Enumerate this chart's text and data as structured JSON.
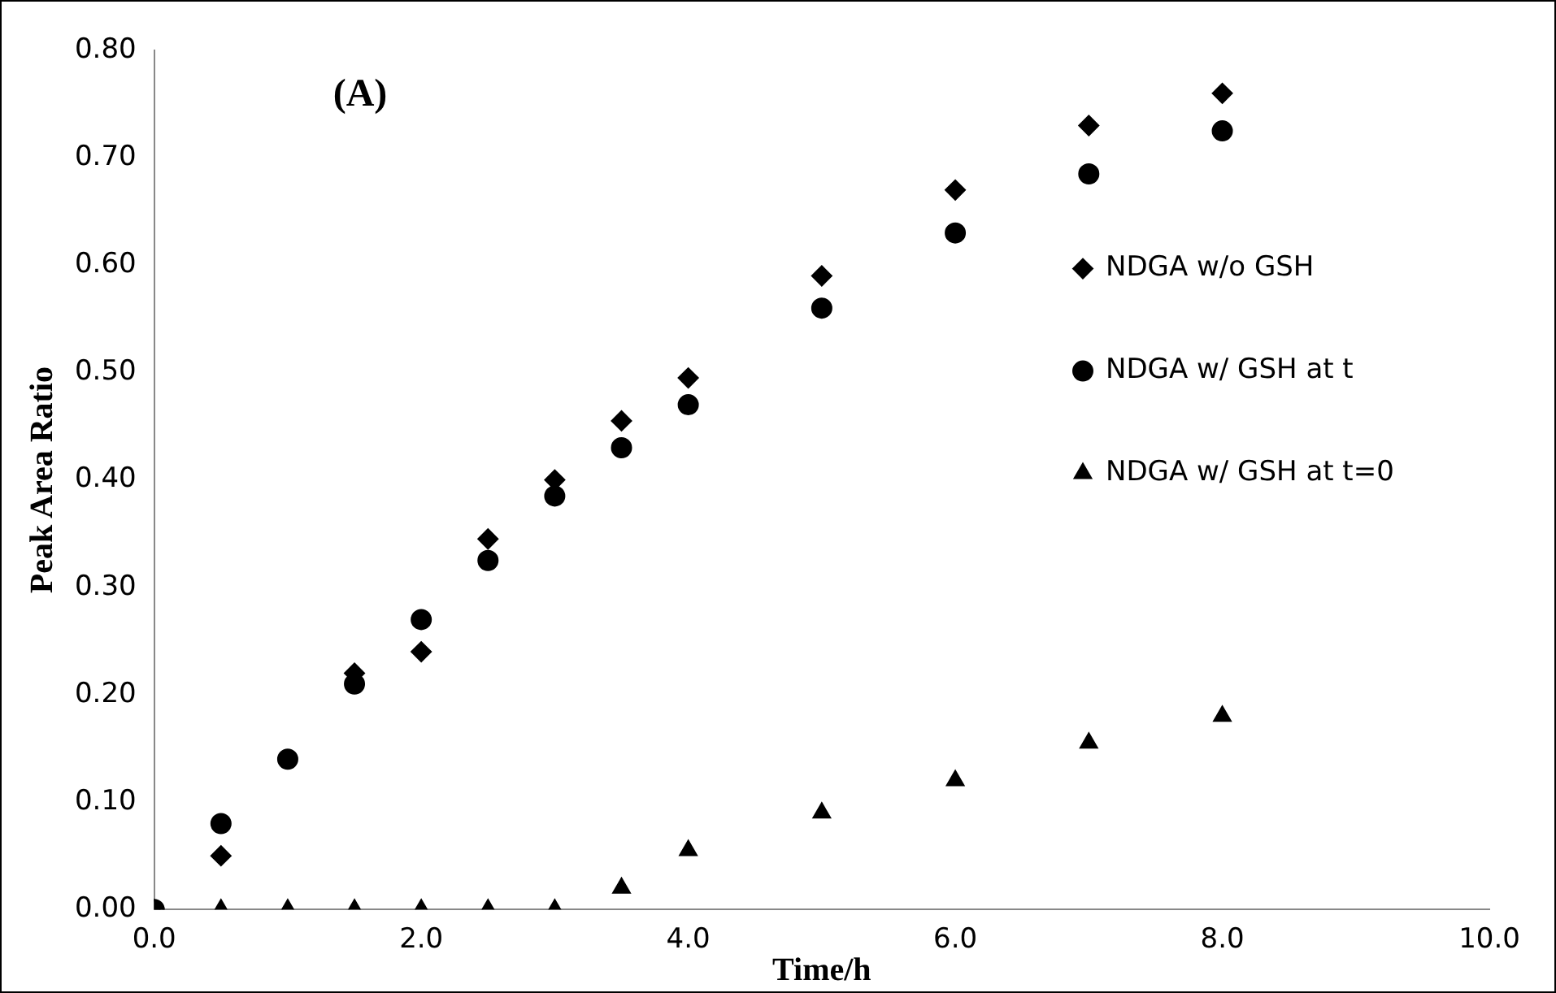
{
  "chart_data": {
    "type": "scatter",
    "xlabel": "Time/h",
    "ylabel": "Peak Area Ratio",
    "annotations": [
      "(A)"
    ],
    "xlim": [
      0,
      10
    ],
    "xticks": [
      {
        "value": 0,
        "label": "0.0"
      },
      {
        "value": 2,
        "label": "2.0"
      },
      {
        "value": 4,
        "label": "4.0"
      },
      {
        "value": 6,
        "label": "6.0"
      },
      {
        "value": 8,
        "label": "8.0"
      },
      {
        "value": 10,
        "label": "10.0"
      }
    ],
    "ylim": [
      0,
      0.8
    ],
    "yticks": [
      {
        "value": 0,
        "label": "0.00"
      },
      {
        "value": 0.1,
        "label": "0.10"
      },
      {
        "value": 0.2,
        "label": "0.20"
      },
      {
        "value": 0.3,
        "label": "0.30"
      },
      {
        "value": 0.4,
        "label": "0.40"
      },
      {
        "value": 0.5,
        "label": "0.50"
      },
      {
        "value": 0.6,
        "label": "0.60"
      },
      {
        "value": 0.7,
        "label": "0.70"
      },
      {
        "value": 0.8,
        "label": "0.80"
      }
    ],
    "grid": false,
    "legend": "right",
    "series": [
      {
        "name": "NDGA w/o GSH",
        "color": "#000000",
        "marker": "diamond",
        "x": [
          0,
          0.5,
          1,
          1.5,
          2,
          2.5,
          3,
          3.5,
          4,
          5,
          6,
          7,
          8
        ],
        "values": [
          0,
          0.05,
          null,
          0.22,
          0.24,
          0.345,
          0.4,
          0.455,
          0.495,
          0.59,
          0.67,
          0.73,
          0.76
        ]
      },
      {
        "name": "NDGA w/ GSH at t",
        "color": "#000000",
        "marker": "circle",
        "x": [
          0,
          0.5,
          1,
          1.5,
          2,
          2.5,
          3,
          3.5,
          4,
          5,
          6,
          7,
          8
        ],
        "values": [
          0,
          0.08,
          0.14,
          0.21,
          0.27,
          0.325,
          0.385,
          0.43,
          0.47,
          0.56,
          0.63,
          0.685,
          0.725
        ]
      },
      {
        "name": "NDGA w/ GSH at t=0",
        "color": "#000000",
        "marker": "triangle",
        "x": [
          0,
          0.5,
          1,
          1.5,
          2,
          2.5,
          3,
          3.5,
          4,
          5,
          6,
          7,
          8
        ],
        "values": [
          0,
          0,
          0,
          0,
          0,
          0,
          0,
          0.02,
          0.055,
          0.09,
          0.12,
          0.155,
          0.18
        ]
      }
    ]
  }
}
